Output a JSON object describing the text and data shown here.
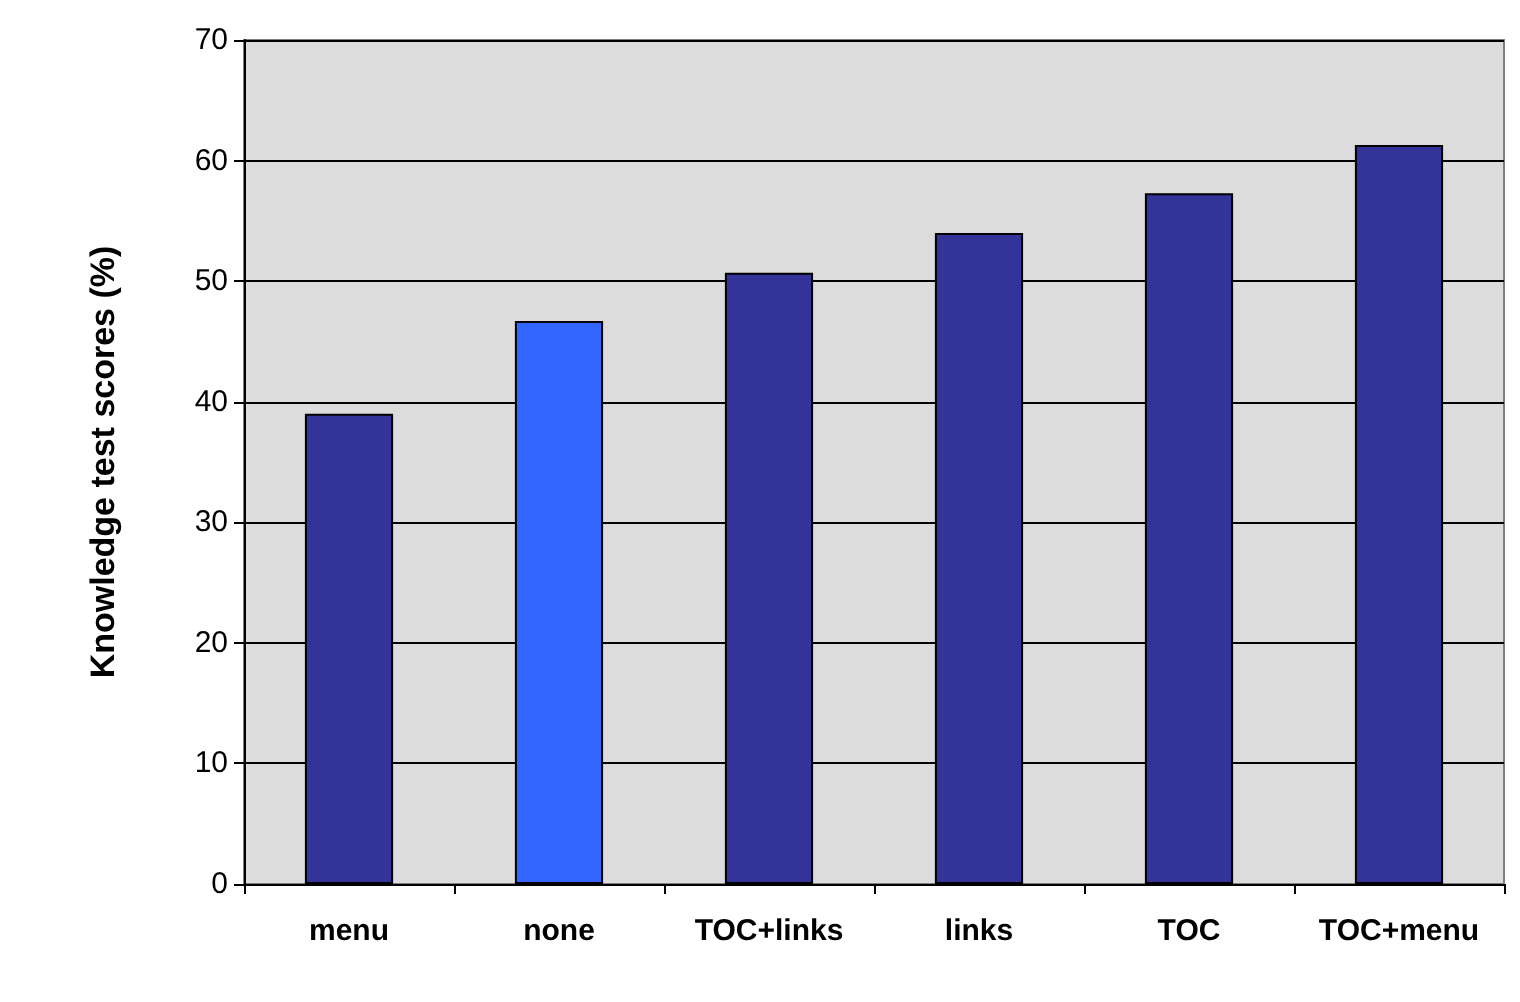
{
  "chart_data": {
    "type": "bar",
    "ylabel": "Knowledge test scores (%)",
    "categories": [
      "menu",
      "none",
      "TOC+links",
      "links",
      "TOC",
      "TOC+menu"
    ],
    "values": [
      39,
      46.7,
      50.7,
      54,
      57.3,
      61.3
    ],
    "colors": [
      "#333399",
      "#3366ff",
      "#333399",
      "#333399",
      "#333399",
      "#333399"
    ],
    "ylim": [
      0,
      70
    ],
    "yticks": [
      0,
      10,
      20,
      30,
      40,
      50,
      60,
      70
    ],
    "grid": "y"
  }
}
